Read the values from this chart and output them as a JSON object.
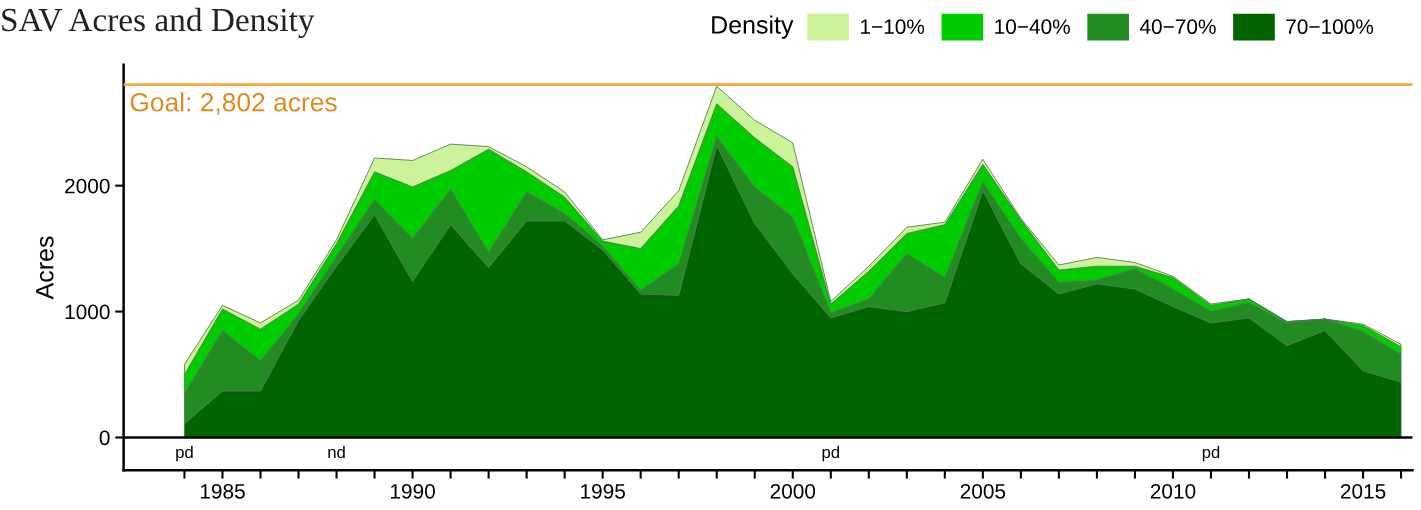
{
  "chart_data": {
    "type": "area",
    "stacked": true,
    "title": "SAV Acres and Density",
    "ylabel": "Acres",
    "legend_title": "Density",
    "legend": "top right",
    "x": [
      1984,
      1985,
      1986,
      1987,
      1988,
      1989,
      1990,
      1991,
      1992,
      1993,
      1994,
      1995,
      1996,
      1997,
      1998,
      1999,
      2000,
      2001,
      2002,
      2003,
      2004,
      2005,
      2006,
      2007,
      2008,
      2009,
      2010,
      2011,
      2012,
      2013,
      2014,
      2015,
      2016
    ],
    "series": [
      {
        "name": "70−100%",
        "color": "#006400",
        "values": [
          110,
          370,
          370,
          930,
          1360,
          1770,
          1240,
          1690,
          1350,
          1720,
          1720,
          1490,
          1140,
          1130,
          2320,
          1700,
          1300,
          950,
          1040,
          1000,
          1070,
          1960,
          1380,
          1140,
          1220,
          1180,
          1040,
          910,
          950,
          730,
          850,
          530,
          440
        ]
      },
      {
        "name": "40−70%",
        "color": "#228b22",
        "values": [
          240,
          480,
          240,
          50,
          80,
          120,
          340,
          280,
          120,
          230,
          60,
          30,
          30,
          250,
          70,
          290,
          450,
          40,
          60,
          460,
          200,
          70,
          200,
          90,
          30,
          160,
          140,
          90,
          120,
          180,
          90,
          310,
          220
        ]
      },
      {
        "name": "10−40%",
        "color": "#00cc00",
        "values": [
          150,
          170,
          250,
          80,
          100,
          220,
          410,
          150,
          820,
          160,
          130,
          40,
          330,
          460,
          260,
          390,
          400,
          70,
          220,
          160,
          420,
          140,
          150,
          100,
          110,
          20,
          90,
          50,
          30,
          10,
          0,
          50,
          60
        ]
      },
      {
        "name": "1−10%",
        "color": "#ccf29a",
        "values": [
          80,
          30,
          50,
          30,
          30,
          110,
          210,
          210,
          20,
          40,
          40,
          10,
          130,
          120,
          140,
          140,
          190,
          20,
          40,
          50,
          20,
          40,
          10,
          40,
          70,
          30,
          10,
          10,
          0,
          0,
          0,
          10,
          20
        ]
      }
    ],
    "xlim": [
      1982.4,
      2016.3
    ],
    "ylim": [
      -260,
      2960
    ],
    "yticks": [
      0,
      1000,
      2000
    ],
    "xticks": [
      {
        "value": 1984,
        "label": null
      },
      1985,
      {
        "value": 1986,
        "label": null
      },
      {
        "value": 1987,
        "label": null
      },
      {
        "value": 1988,
        "label": null
      },
      {
        "value": 1989,
        "label": null
      },
      1990,
      {
        "value": 1991,
        "label": null
      },
      {
        "value": 1992,
        "label": null
      },
      {
        "value": 1993,
        "label": null
      },
      {
        "value": 1994,
        "label": null
      },
      1995,
      {
        "value": 1996,
        "label": null
      },
      {
        "value": 1997,
        "label": null
      },
      {
        "value": 1998,
        "label": null
      },
      {
        "value": 1999,
        "label": null
      },
      2000,
      {
        "value": 2001,
        "label": null
      },
      {
        "value": 2002,
        "label": null
      },
      {
        "value": 2003,
        "label": null
      },
      {
        "value": 2004,
        "label": null
      },
      2005,
      {
        "value": 2006,
        "label": null
      },
      {
        "value": 2007,
        "label": null
      },
      {
        "value": 2008,
        "label": null
      },
      {
        "value": 2009,
        "label": null
      },
      2010,
      {
        "value": 2011,
        "label": null
      },
      {
        "value": 2012,
        "label": null
      },
      {
        "value": 2013,
        "label": null
      },
      {
        "value": 2014,
        "label": null
      },
      2015,
      {
        "value": 2016,
        "label": null
      }
    ],
    "ref_lines": [
      {
        "axis": "y",
        "value": 2802,
        "label": "Goal: 2,802 acres",
        "color": "#f5a742"
      },
      {
        "axis": "y",
        "value": 0,
        "label": null,
        "color": "#000000"
      }
    ],
    "annotations": [
      {
        "text": "pd",
        "x": 1984,
        "y": 0
      },
      {
        "text": "nd",
        "x": 1988,
        "y": 0
      },
      {
        "text": "pd",
        "x": 2001,
        "y": 0
      },
      {
        "text": "pd",
        "x": 2011,
        "y": 0
      }
    ],
    "grid": false
  }
}
